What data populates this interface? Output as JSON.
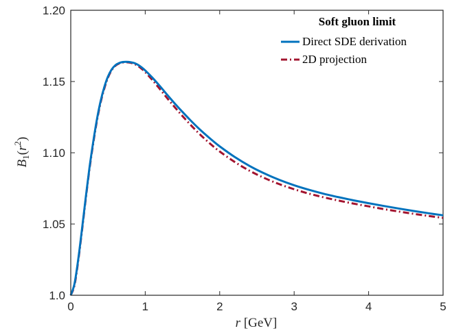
{
  "chart_data": {
    "type": "line",
    "xlabel": "r [GeV]",
    "ylabel": "B1(r2)",
    "xlim": [
      0,
      5
    ],
    "ylim": [
      1.0,
      1.2
    ],
    "x_ticks": [
      0,
      1,
      2,
      3,
      4,
      5
    ],
    "x_tick_labels": [
      "0",
      "1",
      "2",
      "3",
      "4",
      "5"
    ],
    "y_ticks": [
      1.0,
      1.05,
      1.1,
      1.15,
      1.2
    ],
    "y_tick_labels": [
      "1.0",
      "1.05",
      "1.10",
      "1.15",
      "1.20"
    ],
    "grid": false,
    "legend": {
      "title": "Soft gluon limit",
      "placement": "top-right"
    },
    "series": [
      {
        "name": "Direct SDE derivation",
        "color": "#0072BD",
        "style": "solid",
        "x": [
          0,
          0.05,
          0.1,
          0.15,
          0.2,
          0.25,
          0.3,
          0.35,
          0.4,
          0.45,
          0.5,
          0.55,
          0.6,
          0.65,
          0.7,
          0.75,
          0.8,
          0.85,
          0.9,
          0.95,
          1.0,
          1.1,
          1.2,
          1.3,
          1.4,
          1.5,
          1.6,
          1.7,
          1.8,
          1.9,
          2.0,
          2.2,
          2.4,
          2.6,
          2.8,
          3.0,
          3.2,
          3.4,
          3.6,
          3.8,
          4.0,
          4.2,
          4.4,
          4.6,
          4.8,
          5.0
        ],
        "y": [
          1.0,
          1.008,
          1.025,
          1.046,
          1.068,
          1.089,
          1.107,
          1.123,
          1.136,
          1.146,
          1.1535,
          1.1585,
          1.1615,
          1.163,
          1.1637,
          1.1638,
          1.1636,
          1.163,
          1.1618,
          1.16,
          1.1578,
          1.1525,
          1.1466,
          1.1404,
          1.1344,
          1.1287,
          1.1232,
          1.118,
          1.1132,
          1.1087,
          1.1045,
          1.0971,
          1.0908,
          1.0855,
          1.081,
          1.0772,
          1.074,
          1.0712,
          1.0688,
          1.0666,
          1.0646,
          1.0627,
          1.0609,
          1.0592,
          1.0576,
          1.0561
        ]
      },
      {
        "name": "2D projection",
        "color": "#A2142F",
        "style": "dash-dot",
        "x": [
          0,
          0.05,
          0.1,
          0.15,
          0.2,
          0.25,
          0.3,
          0.35,
          0.4,
          0.45,
          0.5,
          0.55,
          0.6,
          0.65,
          0.7,
          0.75,
          0.8,
          0.85,
          0.9,
          0.95,
          1.0,
          1.1,
          1.2,
          1.3,
          1.4,
          1.5,
          1.6,
          1.7,
          1.8,
          1.9,
          2.0,
          2.2,
          2.4,
          2.6,
          2.8,
          3.0,
          3.2,
          3.4,
          3.6,
          3.8,
          4.0,
          4.2,
          4.4,
          4.6,
          4.8,
          5.0
        ],
        "y": [
          1.0,
          1.007,
          1.024,
          1.045,
          1.067,
          1.088,
          1.106,
          1.122,
          1.135,
          1.145,
          1.1528,
          1.158,
          1.1611,
          1.1627,
          1.1634,
          1.1635,
          1.1632,
          1.1624,
          1.161,
          1.159,
          1.1566,
          1.1508,
          1.1445,
          1.138,
          1.1318,
          1.1258,
          1.1201,
          1.1147,
          1.1097,
          1.1051,
          1.1009,
          1.0936,
          1.0874,
          1.0823,
          1.078,
          1.0744,
          1.0713,
          1.0687,
          1.0664,
          1.0643,
          1.0624,
          1.0605,
          1.0588,
          1.0572,
          1.0557,
          1.0543
        ]
      }
    ]
  }
}
